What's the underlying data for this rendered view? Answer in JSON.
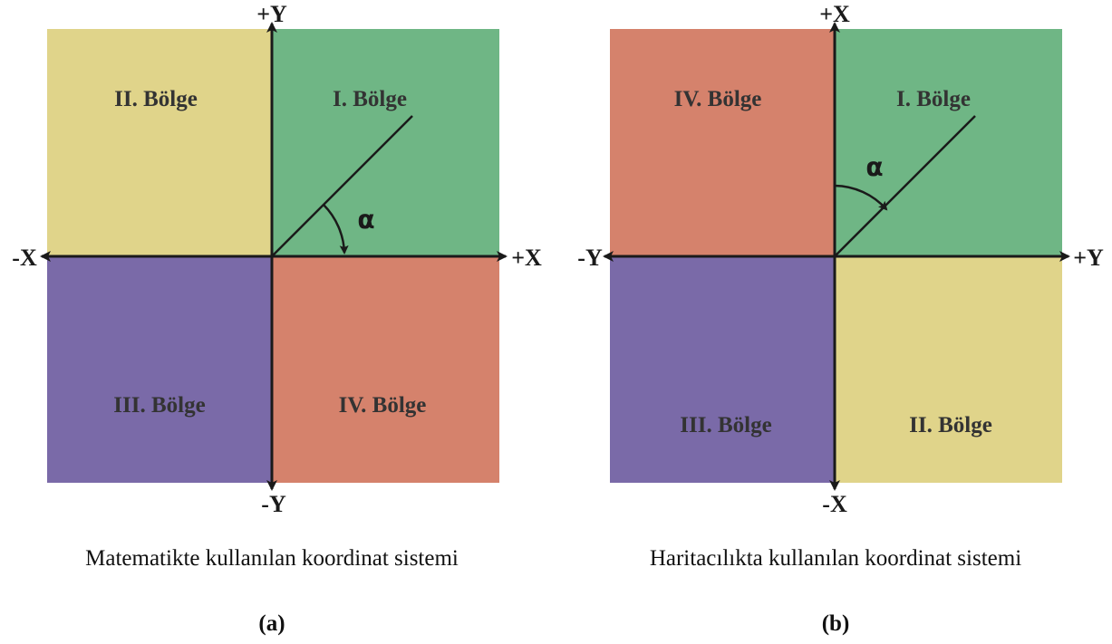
{
  "colors": {
    "yellow": "#e0d48a",
    "green": "#6fb685",
    "purple": "#7a6aa8",
    "red": "#d5826c",
    "axis": "#1a1a1a"
  },
  "diagram_a": {
    "axes": {
      "pos_y": "+Y",
      "neg_y": "-Y",
      "pos_x": "+X",
      "neg_x": "-X"
    },
    "quadrants": {
      "top_left": "II. Bölge",
      "top_right": "I. Bölge",
      "bottom_left": "III. Bölge",
      "bottom_right": "IV. Bölge"
    },
    "angle_symbol": "α",
    "caption": "Matematikte kullanılan koordinat sistemi",
    "sublabel": "(a)"
  },
  "diagram_b": {
    "axes": {
      "pos_y": "+X",
      "neg_y": "-X",
      "pos_x": "+Y",
      "neg_x": "-Y"
    },
    "quadrants": {
      "top_left": "IV. Bölge",
      "top_right": "I. Bölge",
      "bottom_left": "III. Bölge",
      "bottom_right": "II. Bölge"
    },
    "angle_symbol": "α",
    "caption": "Haritacılıkta kullanılan koordinat sistemi",
    "sublabel": "(b)"
  }
}
